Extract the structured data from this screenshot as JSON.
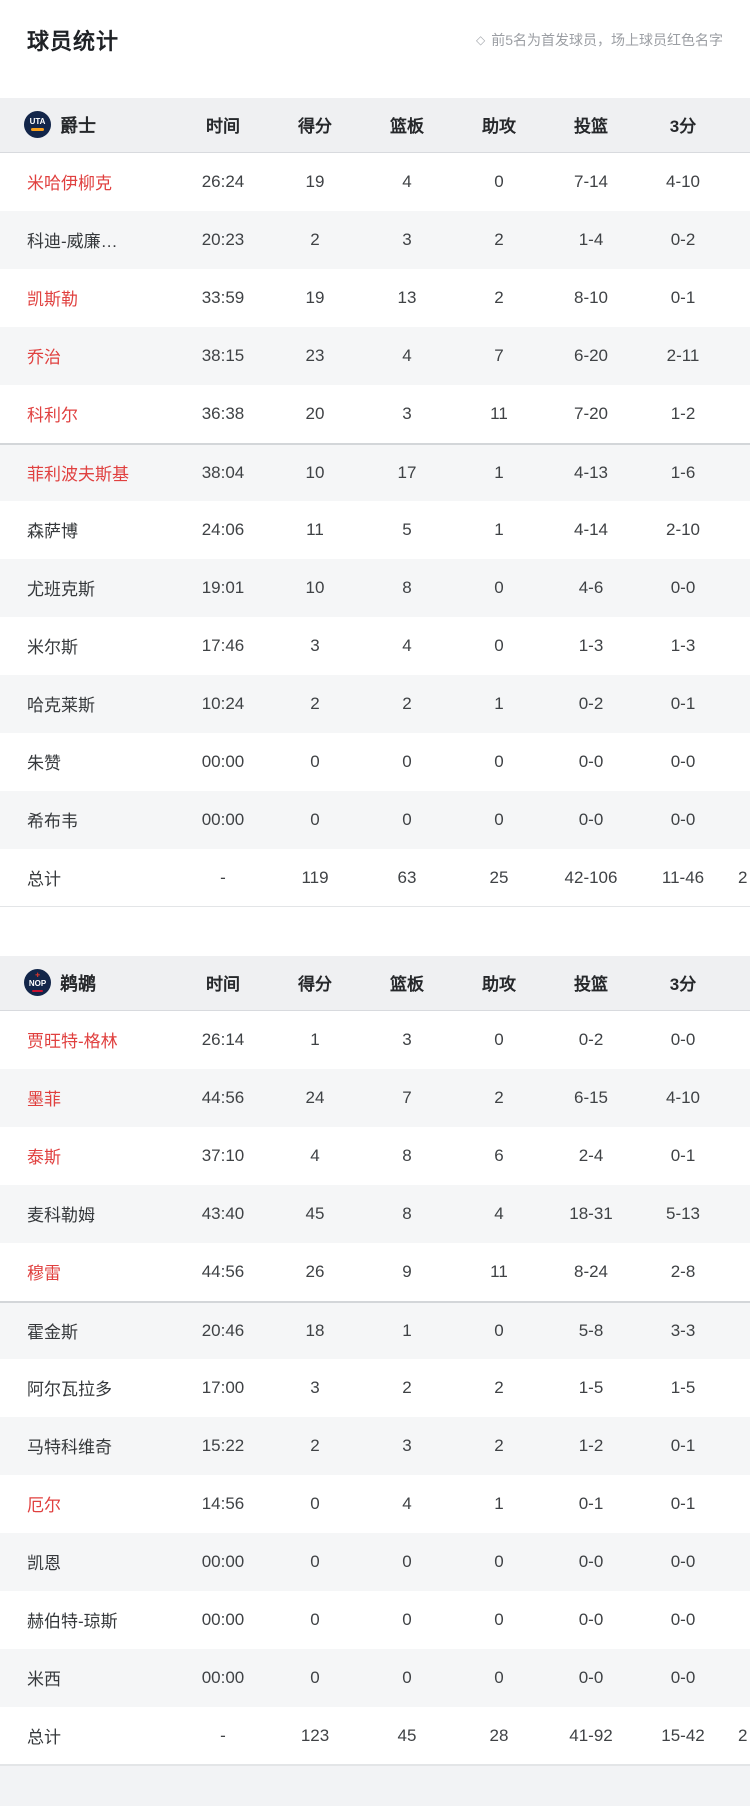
{
  "page": {
    "title": "球员统计",
    "note_icon": "◇",
    "note": "前5名为首发球员，场上球员红色名字"
  },
  "columns": [
    "时间",
    "得分",
    "篮板",
    "助攻",
    "投篮",
    "3分"
  ],
  "starters_count": 5,
  "colors": {
    "on_court_red": "#e0403f",
    "header_bg": "#eff0f2",
    "row_alt_bg": "#f5f6f7",
    "uta_logo_navy": "#13264a",
    "uta_logo_yellow": "#f9a01b",
    "nop_logo_navy": "#13264a",
    "nop_logo_red": "#c8102e"
  },
  "teams": [
    {
      "abbr": "UTA",
      "name": "爵士",
      "players": [
        {
          "name": "米哈伊柳克",
          "on_court": true,
          "time": "26:24",
          "pts": "19",
          "reb": "4",
          "ast": "0",
          "fg": "7-14",
          "tp": "4-10"
        },
        {
          "name": "科迪-威廉…",
          "on_court": false,
          "time": "20:23",
          "pts": "2",
          "reb": "3",
          "ast": "2",
          "fg": "1-4",
          "tp": "0-2"
        },
        {
          "name": "凯斯勒",
          "on_court": true,
          "time": "33:59",
          "pts": "19",
          "reb": "13",
          "ast": "2",
          "fg": "8-10",
          "tp": "0-1"
        },
        {
          "name": "乔治",
          "on_court": true,
          "time": "38:15",
          "pts": "23",
          "reb": "4",
          "ast": "7",
          "fg": "6-20",
          "tp": "2-11"
        },
        {
          "name": "科利尔",
          "on_court": true,
          "time": "36:38",
          "pts": "20",
          "reb": "3",
          "ast": "11",
          "fg": "7-20",
          "tp": "1-2"
        },
        {
          "name": "菲利波夫斯基",
          "on_court": true,
          "time": "38:04",
          "pts": "10",
          "reb": "17",
          "ast": "1",
          "fg": "4-13",
          "tp": "1-6"
        },
        {
          "name": "森萨博",
          "on_court": false,
          "time": "24:06",
          "pts": "11",
          "reb": "5",
          "ast": "1",
          "fg": "4-14",
          "tp": "2-10"
        },
        {
          "name": "尤班克斯",
          "on_court": false,
          "time": "19:01",
          "pts": "10",
          "reb": "8",
          "ast": "0",
          "fg": "4-6",
          "tp": "0-0"
        },
        {
          "name": "米尔斯",
          "on_court": false,
          "time": "17:46",
          "pts": "3",
          "reb": "4",
          "ast": "0",
          "fg": "1-3",
          "tp": "1-3"
        },
        {
          "name": "哈克莱斯",
          "on_court": false,
          "time": "10:24",
          "pts": "2",
          "reb": "2",
          "ast": "1",
          "fg": "0-2",
          "tp": "0-1"
        },
        {
          "name": "朱赞",
          "on_court": false,
          "time": "00:00",
          "pts": "0",
          "reb": "0",
          "ast": "0",
          "fg": "0-0",
          "tp": "0-0"
        },
        {
          "name": "希布韦",
          "on_court": false,
          "time": "00:00",
          "pts": "0",
          "reb": "0",
          "ast": "0",
          "fg": "0-0",
          "tp": "0-0"
        }
      ],
      "totals": {
        "name": "总计",
        "time": "-",
        "pts": "119",
        "reb": "63",
        "ast": "25",
        "fg": "42-106",
        "tp": "11-46",
        "partial": "2"
      }
    },
    {
      "abbr": "NOP",
      "name": "鹈鹕",
      "players": [
        {
          "name": "贾旺特-格林",
          "on_court": true,
          "time": "26:14",
          "pts": "1",
          "reb": "3",
          "ast": "0",
          "fg": "0-2",
          "tp": "0-0"
        },
        {
          "name": "墨菲",
          "on_court": true,
          "time": "44:56",
          "pts": "24",
          "reb": "7",
          "ast": "2",
          "fg": "6-15",
          "tp": "4-10"
        },
        {
          "name": "泰斯",
          "on_court": true,
          "time": "37:10",
          "pts": "4",
          "reb": "8",
          "ast": "6",
          "fg": "2-4",
          "tp": "0-1"
        },
        {
          "name": "麦科勒姆",
          "on_court": false,
          "time": "43:40",
          "pts": "45",
          "reb": "8",
          "ast": "4",
          "fg": "18-31",
          "tp": "5-13"
        },
        {
          "name": "穆雷",
          "on_court": true,
          "time": "44:56",
          "pts": "26",
          "reb": "9",
          "ast": "11",
          "fg": "8-24",
          "tp": "2-8"
        },
        {
          "name": "霍金斯",
          "on_court": false,
          "time": "20:46",
          "pts": "18",
          "reb": "1",
          "ast": "0",
          "fg": "5-8",
          "tp": "3-3"
        },
        {
          "name": "阿尔瓦拉多",
          "on_court": false,
          "time": "17:00",
          "pts": "3",
          "reb": "2",
          "ast": "2",
          "fg": "1-5",
          "tp": "1-5"
        },
        {
          "name": "马特科维奇",
          "on_court": false,
          "time": "15:22",
          "pts": "2",
          "reb": "3",
          "ast": "2",
          "fg": "1-2",
          "tp": "0-1"
        },
        {
          "name": "厄尔",
          "on_court": true,
          "time": "14:56",
          "pts": "0",
          "reb": "4",
          "ast": "1",
          "fg": "0-1",
          "tp": "0-1"
        },
        {
          "name": "凯恩",
          "on_court": false,
          "time": "00:00",
          "pts": "0",
          "reb": "0",
          "ast": "0",
          "fg": "0-0",
          "tp": "0-0"
        },
        {
          "name": "赫伯特-琼斯",
          "on_court": false,
          "time": "00:00",
          "pts": "0",
          "reb": "0",
          "ast": "0",
          "fg": "0-0",
          "tp": "0-0"
        },
        {
          "name": "米西",
          "on_court": false,
          "time": "00:00",
          "pts": "0",
          "reb": "0",
          "ast": "0",
          "fg": "0-0",
          "tp": "0-0"
        }
      ],
      "totals": {
        "name": "总计",
        "time": "-",
        "pts": "123",
        "reb": "45",
        "ast": "28",
        "fg": "41-92",
        "tp": "15-42",
        "partial": "2"
      }
    }
  ]
}
